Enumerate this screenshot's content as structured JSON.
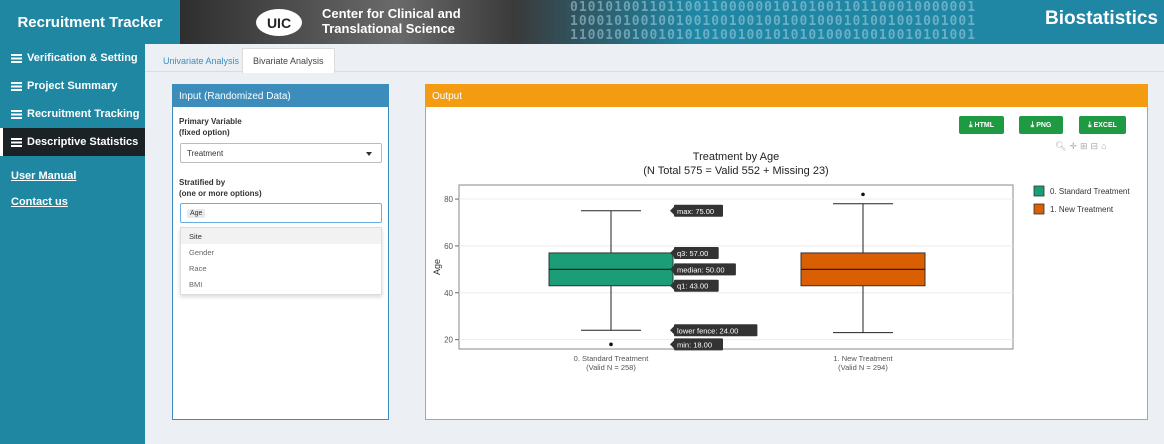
{
  "app": {
    "title": "Recruitment Tracker"
  },
  "banner": {
    "logo": "UIC",
    "line1": "Center for Clinical and",
    "line2": "Translational Science",
    "right_text": "Biostatistics",
    "binary_rows": [
      "0101010011011001100000010101001101100010000001",
      "1000101001001001001001001001000101001001001001",
      "1100100100101010100100101010100010010010101001"
    ]
  },
  "sidebar": {
    "items": [
      {
        "label": "Verification & Setting",
        "icon": "table-icon",
        "active": false
      },
      {
        "label": "Project Summary",
        "icon": "table-icon",
        "active": false
      },
      {
        "label": "Recruitment Tracking",
        "icon": "table-icon",
        "active": false
      },
      {
        "label": "Descriptive Statistics",
        "icon": "table-icon",
        "active": true
      }
    ],
    "links": [
      "User Manual",
      "Contact us"
    ]
  },
  "tabs": [
    {
      "label": "Univariate Analysis",
      "active": false
    },
    {
      "label": "Bivariate Analysis",
      "active": true
    }
  ],
  "input_panel": {
    "title": "Input (Randomized Data)",
    "primary_label_1": "Primary Variable",
    "primary_label_2": "(fixed option)",
    "primary_value": "Treatment",
    "strat_label_1": "Stratified by",
    "strat_label_2": "(one or more options)",
    "strat_selected": "Age",
    "dropdown_options": [
      "Site",
      "Gender",
      "Race",
      "BMI"
    ]
  },
  "output_panel": {
    "title": "Output",
    "buttons": [
      "HTML",
      "PNG",
      "EXCEL"
    ],
    "toolbar_icons": [
      "zoom-icon",
      "pan-icon",
      "zoom-in-icon",
      "zoom-out-icon",
      "home-icon"
    ]
  },
  "chart_data": {
    "type": "box",
    "title": "Treatment by Age",
    "subtitle": "(N Total 575 = Valid 552 + Missing 23)",
    "ylabel": "Age",
    "ylim": [
      16,
      86
    ],
    "yticks": [
      20,
      40,
      60,
      80
    ],
    "categories": [
      "0. Standard Treatment",
      "1. New Treatment"
    ],
    "category_sublabels": [
      "(Valid N = 258)",
      "(Valid N = 294)"
    ],
    "series": [
      {
        "name": "0. Standard Treatment",
        "color": "#1b9e77",
        "lower_fence": 24,
        "q1": 43,
        "median": 50,
        "q3": 57,
        "max": 75,
        "outliers": [
          18
        ]
      },
      {
        "name": "1. New Treatment",
        "color": "#d95f02",
        "lower_fence": 23,
        "q1": 43,
        "median": 50,
        "q3": 57,
        "max": 78,
        "outliers": [
          82
        ]
      }
    ],
    "tooltips": [
      {
        "label": "max: 75.00",
        "value": 75
      },
      {
        "label": "q3: 57.00",
        "value": 57
      },
      {
        "label": "median: 50.00",
        "value": 50
      },
      {
        "label": "q1: 43.00",
        "value": 43
      },
      {
        "label": "lower fence: 24.00",
        "value": 24
      },
      {
        "label": "min: 18.00",
        "value": 18
      }
    ],
    "legend_position": "right",
    "grid": true
  }
}
